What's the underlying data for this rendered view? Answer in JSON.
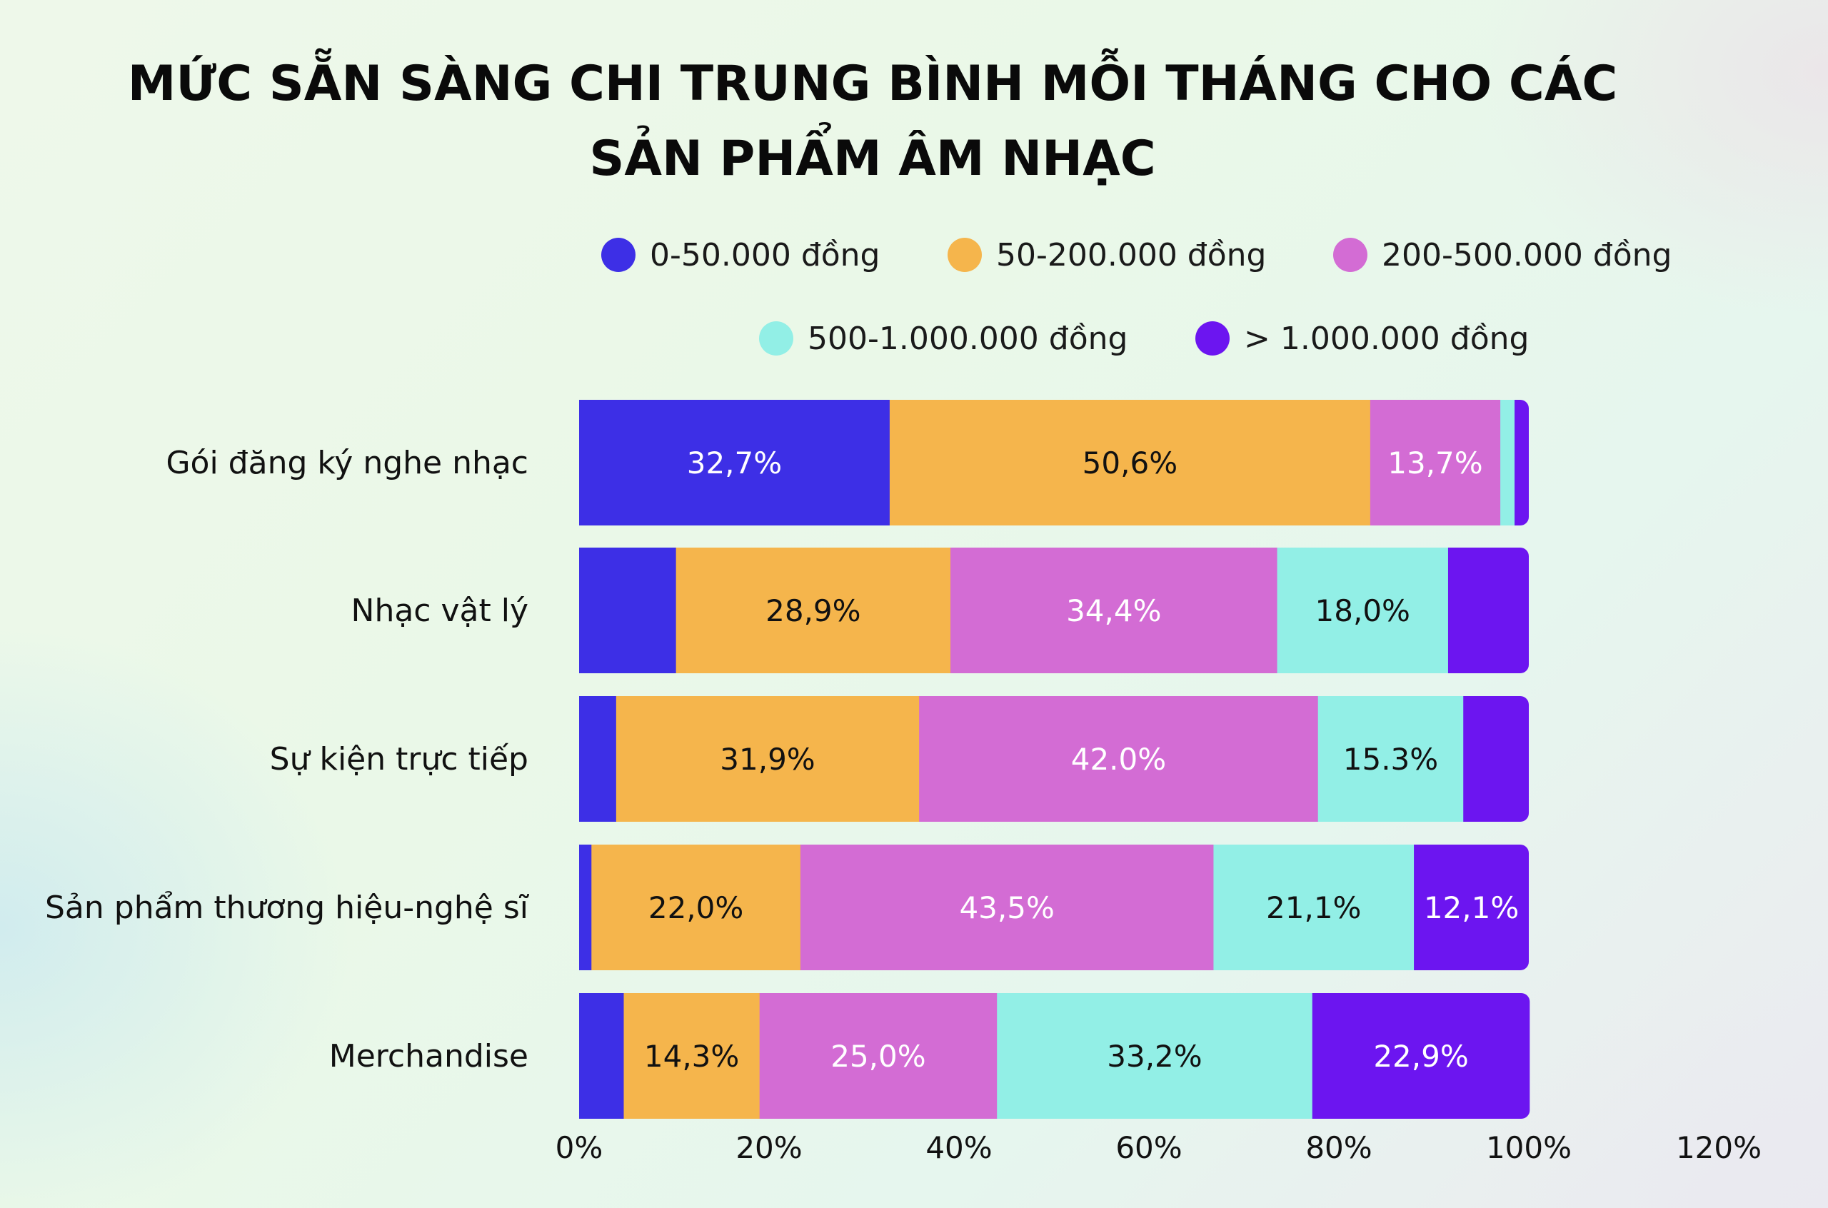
{
  "chart_data": {
    "type": "bar",
    "orientation": "horizontal",
    "stacked": true,
    "title_lines": [
      "MỨC SẴN SÀNG CHI TRUNG BÌNH MỖI THÁNG CHO CÁC",
      "SẢN PHẨM ÂM NHẠC"
    ],
    "xlabel": "",
    "ylabel": "",
    "xlim": [
      0,
      120
    ],
    "ticks": [
      0,
      20,
      40,
      60,
      80,
      100,
      120
    ],
    "tick_labels": [
      "0%",
      "20%",
      "40%",
      "60%",
      "80%",
      "100%",
      "120%"
    ],
    "grid": false,
    "legend_position": "top",
    "categories": [
      "Gói đăng ký nghe nhạc",
      "Nhạc vật lý",
      "Sự kiện trực tiếp",
      "Sản phẩm thương hiệu-nghệ sĩ",
      "Merchandise"
    ],
    "series": [
      {
        "name": "0-50.000 đồng",
        "color": "#3d2fe6",
        "label_color": "#ffffff",
        "values": [
          32.7,
          10.2,
          3.9,
          1.3,
          4.7
        ],
        "labels": [
          "32,7%",
          "",
          "",
          "",
          ""
        ]
      },
      {
        "name": "50-200.000 đồng",
        "color": "#f5b54c",
        "label_color": "#111111",
        "values": [
          50.6,
          28.9,
          31.9,
          22.0,
          14.3
        ],
        "labels": [
          "50,6%",
          "28,9%",
          "31,9%",
          "22,0%",
          "14,3%"
        ]
      },
      {
        "name": "200-500.000 đồng",
        "color": "#d36cd4",
        "label_color": "#ffffff",
        "values": [
          13.7,
          34.4,
          42.0,
          43.5,
          25.0
        ],
        "labels": [
          "13,7%",
          "34,4%",
          "42.0%",
          "43,5%",
          "25,0%"
        ]
      },
      {
        "name": "500-1.000.000 đồng",
        "color": "#92efe6",
        "label_color": "#111111",
        "values": [
          1.5,
          18.0,
          15.3,
          21.1,
          33.2
        ],
        "labels": [
          "",
          "18,0%",
          "15.3%",
          "21,1%",
          "33,2%"
        ]
      },
      {
        "name": "> 1.000.000 đồng",
        "color": "#6c15f0",
        "label_color": "#ffffff",
        "values": [
          1.5,
          8.5,
          6.9,
          12.1,
          22.9
        ],
        "labels": [
          "",
          "",
          "",
          "12,1%",
          "22,9%"
        ]
      }
    ]
  }
}
